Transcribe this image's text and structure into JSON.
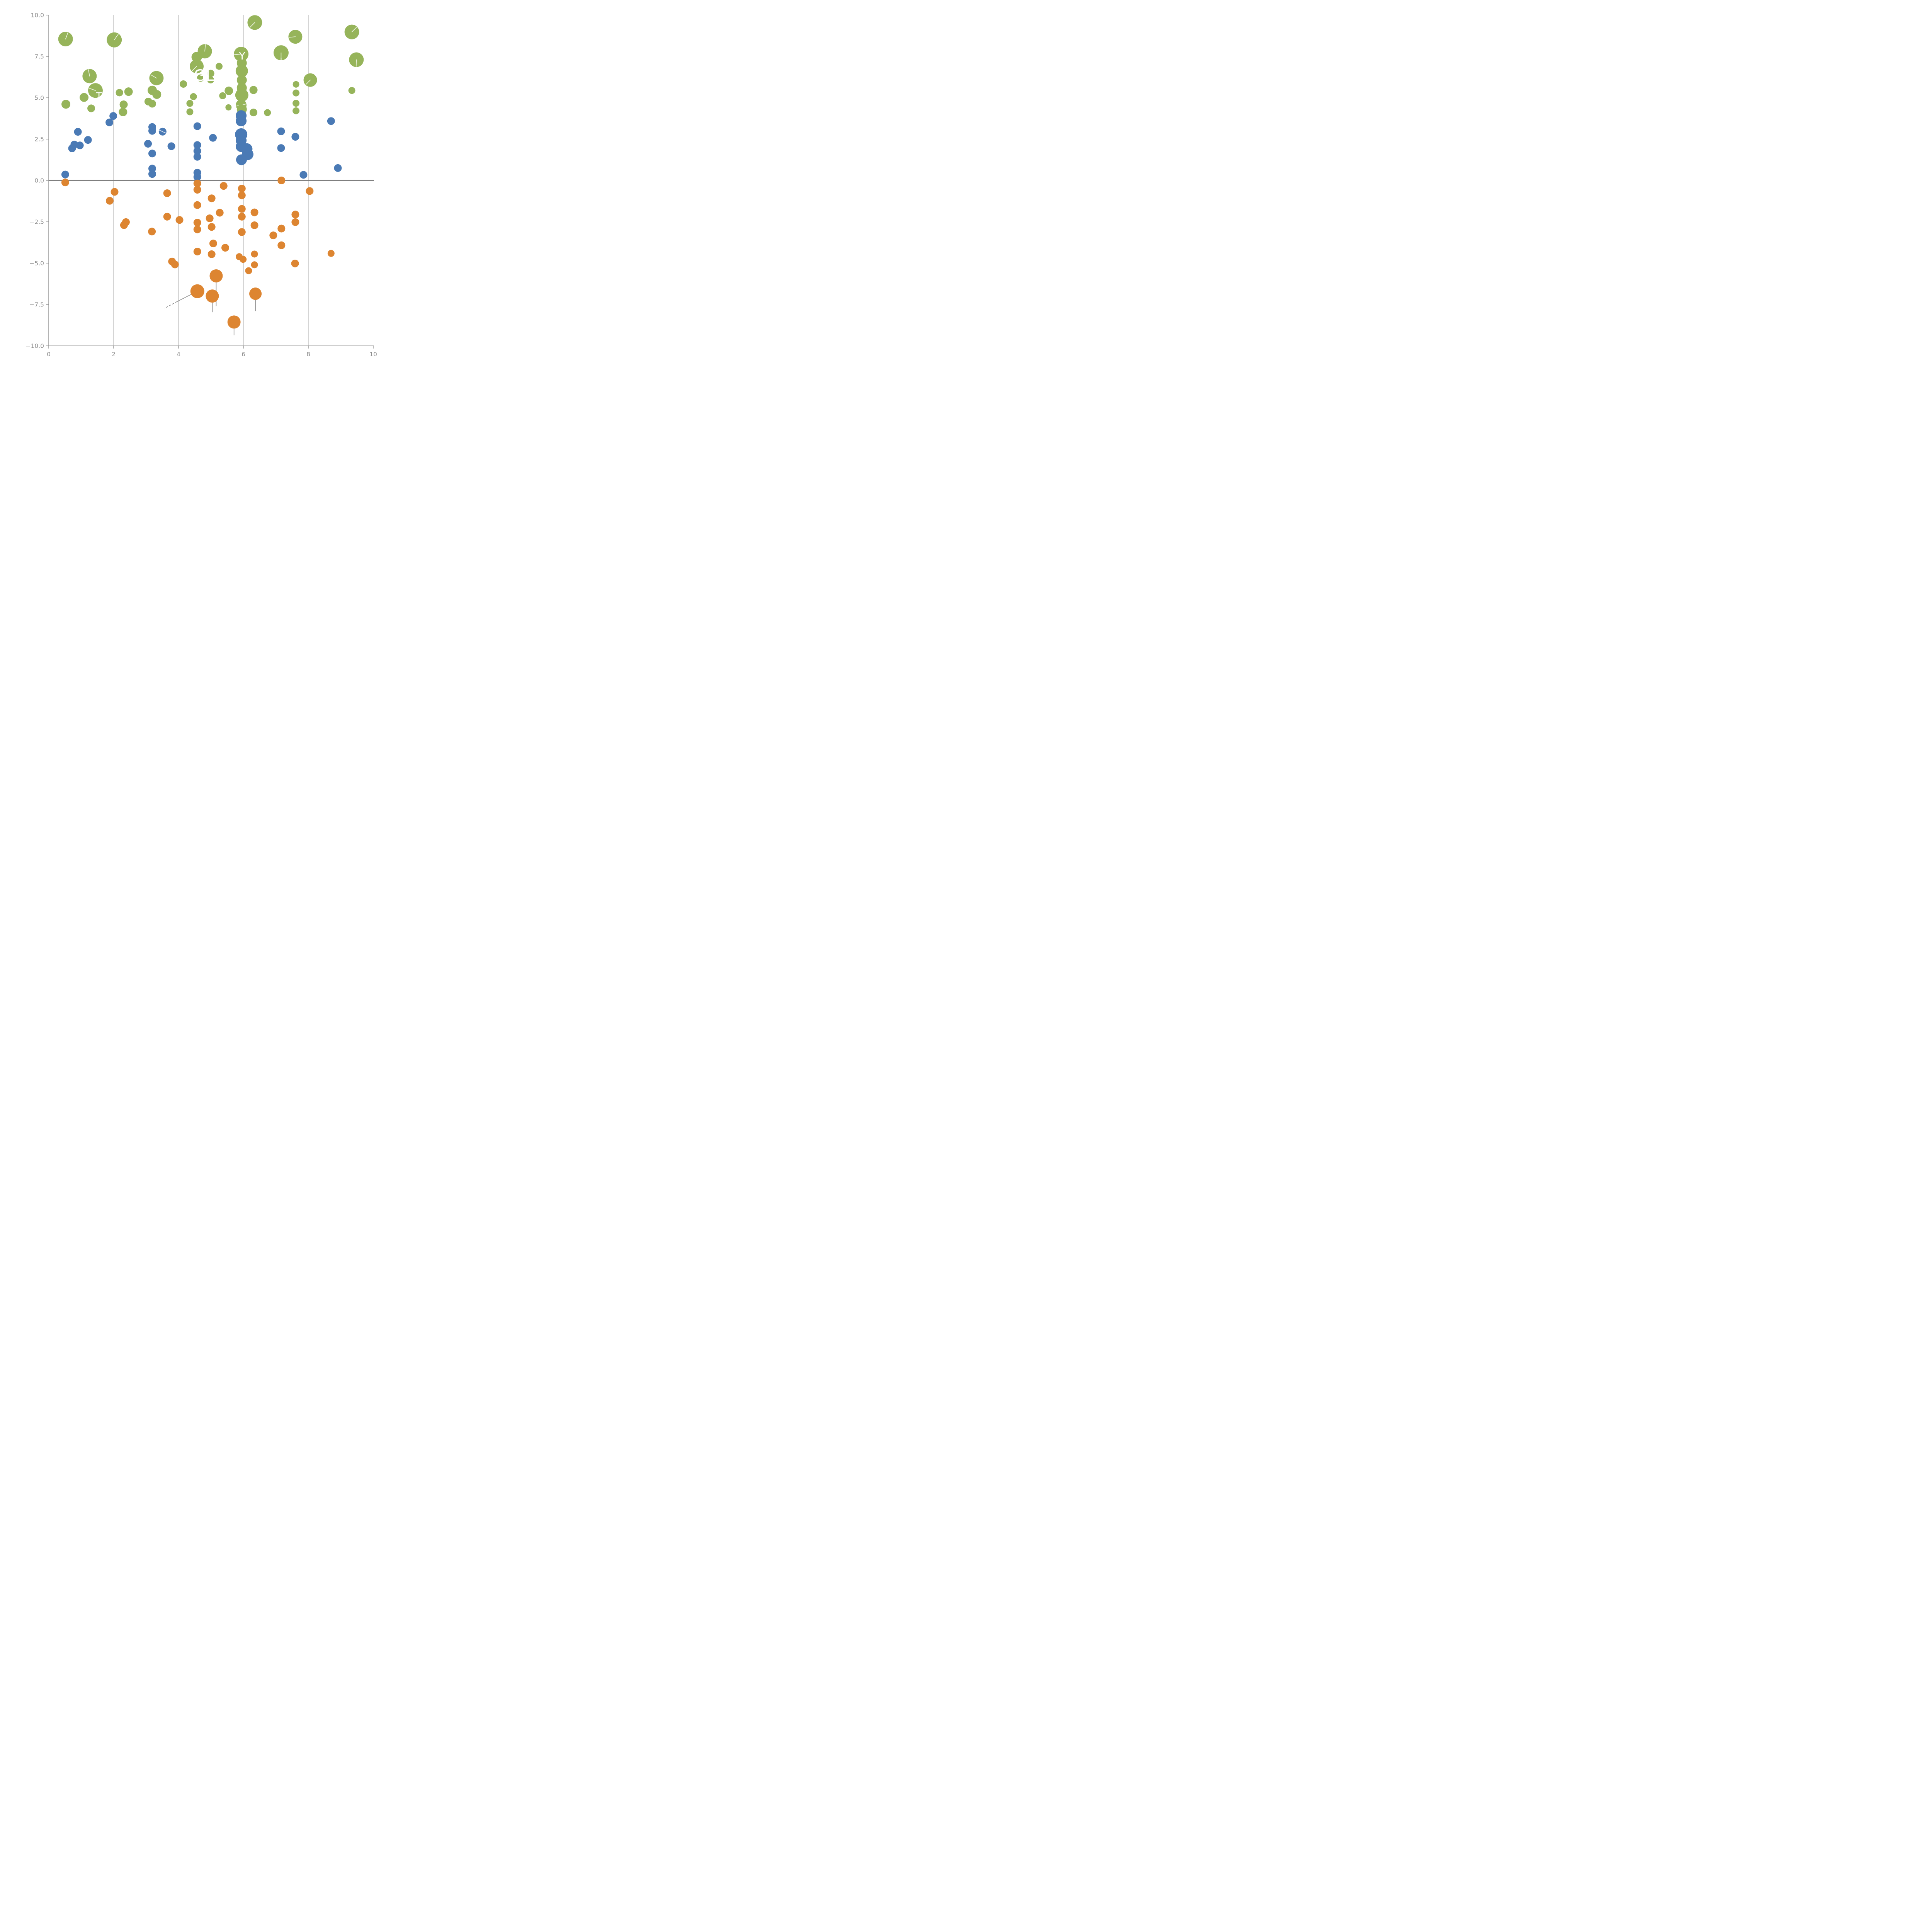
{
  "chart_data": {
    "type": "scatter",
    "title": "",
    "xlabel": "",
    "ylabel": "",
    "xlim": [
      0,
      10
    ],
    "ylim": [
      -10,
      10
    ],
    "grid": "vertical-only",
    "grid_x_values": [
      2,
      4,
      6,
      8
    ],
    "zero_line_y": 0,
    "x_ticks": [
      0,
      2,
      4,
      6,
      8,
      10
    ],
    "x_tick_labels": [
      "0",
      "2",
      "4",
      "6",
      "8",
      "10"
    ],
    "y_ticks": [
      10,
      7.5,
      5,
      2.5,
      0,
      -2.5,
      -5,
      -7.5,
      -10
    ],
    "y_tick_labels": [
      "10.0",
      "7.5",
      "5.0",
      "2.5",
      "0.0",
      "−2.5",
      "−5.0",
      "−7.5",
      "−10.0"
    ],
    "colors": {
      "green": "#96B45A",
      "blue": "#4A7AB5",
      "orange": "#DD8531",
      "grid": "#ABABAB",
      "zero_line": "#7F7F7F",
      "axis": "#8B8B8B",
      "tick_text": "#8B8B8B",
      "needle": "rgba(255,255,255,0.82)",
      "stem": "#8A8A8A",
      "label_text": "#FFFFFF"
    },
    "point_format": "[x, y, radius_px, needle_deg?, needle_len_frac?, needle_through?]",
    "series": [
      {
        "name": "green",
        "color": "#96B45A",
        "points": [
          [
            0.52,
            8.55,
            19,
            70
          ],
          [
            2.02,
            8.5,
            19.5,
            55
          ],
          [
            1.26,
            6.31,
            18.5,
            100
          ],
          [
            1.44,
            5.44,
            19,
            160
          ],
          [
            1.09,
            5.02,
            11.5
          ],
          [
            0.53,
            4.61,
            11.5
          ],
          [
            1.31,
            4.36,
            10
          ],
          [
            2.18,
            5.31,
            9.6
          ],
          [
            2.46,
            5.37,
            11
          ],
          [
            2.31,
            4.59,
            10.5
          ],
          [
            2.29,
            4.14,
            11
          ],
          [
            3.32,
            6.19,
            18.5,
            150
          ],
          [
            3.19,
            5.45,
            12
          ],
          [
            3.33,
            5.2,
            11.5
          ],
          [
            3.07,
            4.77,
            10
          ],
          [
            3.19,
            4.64,
            10
          ],
          [
            4.15,
            5.83,
            9.5
          ],
          [
            4.68,
            6.19,
            9.5
          ],
          [
            4.99,
            6.47,
            9.5
          ],
          [
            4.81,
            7.81,
            18.5,
            85
          ],
          [
            4.56,
            7.46,
            13.5
          ],
          [
            4.56,
            6.9,
            18,
            225,
            1.0
          ],
          [
            5.25,
            6.9,
            9
          ],
          [
            4.99,
            6.08,
            9
          ],
          [
            5.36,
            5.12,
            9
          ],
          [
            4.46,
            5.07,
            9
          ],
          [
            4.35,
            4.66,
            9
          ],
          [
            4.35,
            4.15,
            9
          ],
          [
            5.93,
            7.64,
            19,
            185
          ],
          [
            5.95,
            7.1,
            13
          ],
          [
            5.95,
            6.62,
            16
          ],
          [
            5.95,
            6.07,
            13
          ],
          [
            5.95,
            5.6,
            13
          ],
          [
            5.95,
            5.16,
            17
          ],
          [
            5.93,
            4.56,
            14,
            12,
            1.1,
            1
          ],
          [
            5.95,
            4.3,
            13
          ],
          [
            6.31,
            5.47,
            10.5
          ],
          [
            6.31,
            4.11,
            10
          ],
          [
            5.55,
            5.42,
            11
          ],
          [
            5.54,
            4.42,
            8
          ],
          [
            7.16,
            7.72,
            19.5,
            270
          ],
          [
            7.6,
            8.69,
            18,
            185
          ],
          [
            9.34,
            8.98,
            19,
            45
          ],
          [
            9.48,
            7.3,
            19,
            268
          ],
          [
            8.06,
            6.07,
            17.5,
            225
          ],
          [
            7.62,
            5.81,
            8.5
          ],
          [
            7.62,
            5.29,
            9
          ],
          [
            7.62,
            4.67,
            9
          ],
          [
            7.62,
            4.21,
            9
          ],
          [
            6.74,
            4.1,
            9
          ],
          [
            9.34,
            5.44,
            9
          ],
          [
            6.35,
            9.55,
            19,
            225
          ]
        ]
      },
      {
        "name": "blue",
        "color": "#4A7AB5",
        "points": [
          [
            0.51,
            0.36,
            10
          ],
          [
            0.9,
            2.94,
            10
          ],
          [
            1.21,
            2.45,
            10
          ],
          [
            0.79,
            2.17,
            10
          ],
          [
            0.96,
            2.12,
            10
          ],
          [
            0.72,
            1.94,
            10
          ],
          [
            1.99,
            3.9,
            10
          ],
          [
            1.87,
            3.51,
            10
          ],
          [
            3.19,
            3.23,
            10
          ],
          [
            3.19,
            3.0,
            10
          ],
          [
            3.51,
            2.95,
            10,
            155,
            1.25,
            1
          ],
          [
            3.06,
            2.22,
            10
          ],
          [
            3.78,
            2.07,
            10
          ],
          [
            3.19,
            1.63,
            10
          ],
          [
            3.19,
            0.72,
            10
          ],
          [
            3.19,
            0.39,
            10
          ],
          [
            4.58,
            3.28,
            10
          ],
          [
            4.58,
            2.14,
            10
          ],
          [
            4.58,
            1.78,
            10
          ],
          [
            4.58,
            1.43,
            10
          ],
          [
            4.58,
            0.47,
            10
          ],
          [
            4.58,
            0.21,
            10
          ],
          [
            5.06,
            2.58,
            10
          ],
          [
            5.93,
            3.92,
            14
          ],
          [
            5.93,
            3.6,
            14
          ],
          [
            5.93,
            2.78,
            16
          ],
          [
            5.93,
            2.42,
            14
          ],
          [
            5.93,
            2.05,
            14
          ],
          [
            5.94,
            1.25,
            14
          ],
          [
            6.1,
            1.9,
            15
          ],
          [
            6.13,
            1.58,
            15
          ],
          [
            7.16,
            2.97,
            10
          ],
          [
            7.6,
            2.64,
            10
          ],
          [
            7.16,
            1.96,
            10
          ],
          [
            8.7,
            3.59,
            10
          ],
          [
            8.91,
            0.75,
            10
          ],
          [
            7.85,
            0.34,
            10
          ]
        ]
      },
      {
        "name": "orange",
        "color": "#DD8531",
        "points": [
          [
            0.51,
            -0.12,
            10
          ],
          [
            2.03,
            -0.69,
            10
          ],
          [
            1.88,
            -1.23,
            10
          ],
          [
            2.38,
            -2.52,
            10
          ],
          [
            2.32,
            -2.7,
            10
          ],
          [
            3.65,
            -0.77,
            10
          ],
          [
            4.58,
            -0.18,
            10
          ],
          [
            4.58,
            -0.56,
            10
          ],
          [
            5.39,
            -0.33,
            10
          ],
          [
            5.02,
            -1.08,
            10
          ],
          [
            4.58,
            -1.49,
            10
          ],
          [
            5.95,
            -0.49,
            10
          ],
          [
            5.95,
            -0.9,
            10
          ],
          [
            3.65,
            -2.19,
            10
          ],
          [
            4.03,
            -2.39,
            10
          ],
          [
            4.58,
            -2.55,
            10
          ],
          [
            4.58,
            -2.96,
            10
          ],
          [
            5.27,
            -1.95,
            10
          ],
          [
            4.96,
            -2.29,
            10
          ],
          [
            5.02,
            -2.81,
            10
          ],
          [
            3.18,
            -3.09,
            10
          ],
          [
            5.95,
            -1.72,
            10
          ],
          [
            5.95,
            -2.19,
            10
          ],
          [
            5.95,
            -3.12,
            10
          ],
          [
            6.34,
            -1.93,
            10
          ],
          [
            6.34,
            -2.71,
            10
          ],
          [
            5.07,
            -3.81,
            10
          ],
          [
            5.44,
            -4.07,
            10
          ],
          [
            5.02,
            -4.46,
            10
          ],
          [
            4.58,
            -4.3,
            10
          ],
          [
            7.17,
            0.0,
            10
          ],
          [
            8.04,
            -0.64,
            10
          ],
          [
            7.6,
            -2.06,
            10
          ],
          [
            7.6,
            -2.52,
            10
          ],
          [
            7.17,
            -2.91,
            10
          ],
          [
            6.92,
            -3.32,
            10
          ],
          [
            7.17,
            -3.92,
            10
          ],
          [
            8.7,
            -4.41,
            9
          ],
          [
            7.59,
            -5.02,
            10
          ],
          [
            3.8,
            -4.9,
            10
          ],
          [
            3.89,
            -5.08,
            10
          ],
          [
            5.87,
            -4.61,
            9
          ],
          [
            5.99,
            -4.77,
            9
          ],
          [
            6.34,
            -4.45,
            9
          ],
          [
            6.34,
            -5.1,
            9
          ],
          [
            6.16,
            -5.46,
            9
          ],
          [
            5.16,
            -5.77,
            17
          ],
          [
            4.58,
            -6.7,
            18
          ],
          [
            5.04,
            -6.99,
            17
          ],
          [
            5.71,
            -8.56,
            17
          ],
          [
            6.37,
            -6.85,
            16
          ]
        ]
      }
    ],
    "stems": [
      {
        "x1": 5.16,
        "y1": -5.77,
        "x2": 5.16,
        "y2": -7.6,
        "dashed": false
      },
      {
        "x1": 5.04,
        "y1": -6.99,
        "x2": 5.04,
        "y2": -7.97,
        "dashed": false
      },
      {
        "x1": 5.71,
        "y1": -8.56,
        "x2": 5.71,
        "y2": -9.36,
        "dashed": false
      },
      {
        "x1": 6.37,
        "y1": -6.85,
        "x2": 6.37,
        "y2": -7.9,
        "dashed": false
      },
      {
        "x1": 4.58,
        "y1": -6.7,
        "x2": 3.95,
        "y2": -7.33,
        "dashed": false
      },
      {
        "x1": 3.95,
        "y1": -7.33,
        "x2": 3.57,
        "y2": -7.73,
        "dashed": true
      }
    ],
    "labels": [
      {
        "text": "T",
        "x": 1.55,
        "y": 5.11,
        "size": 25
      },
      {
        "text": "GLM",
        "x": 4.99,
        "y": 6.36,
        "size": 40
      },
      {
        "text": "Y",
        "x": 5.96,
        "y": 7.53,
        "size": 27
      },
      {
        "text": ".l.",
        "x": 7.16,
        "y": 7.2,
        "size": 22
      }
    ]
  }
}
